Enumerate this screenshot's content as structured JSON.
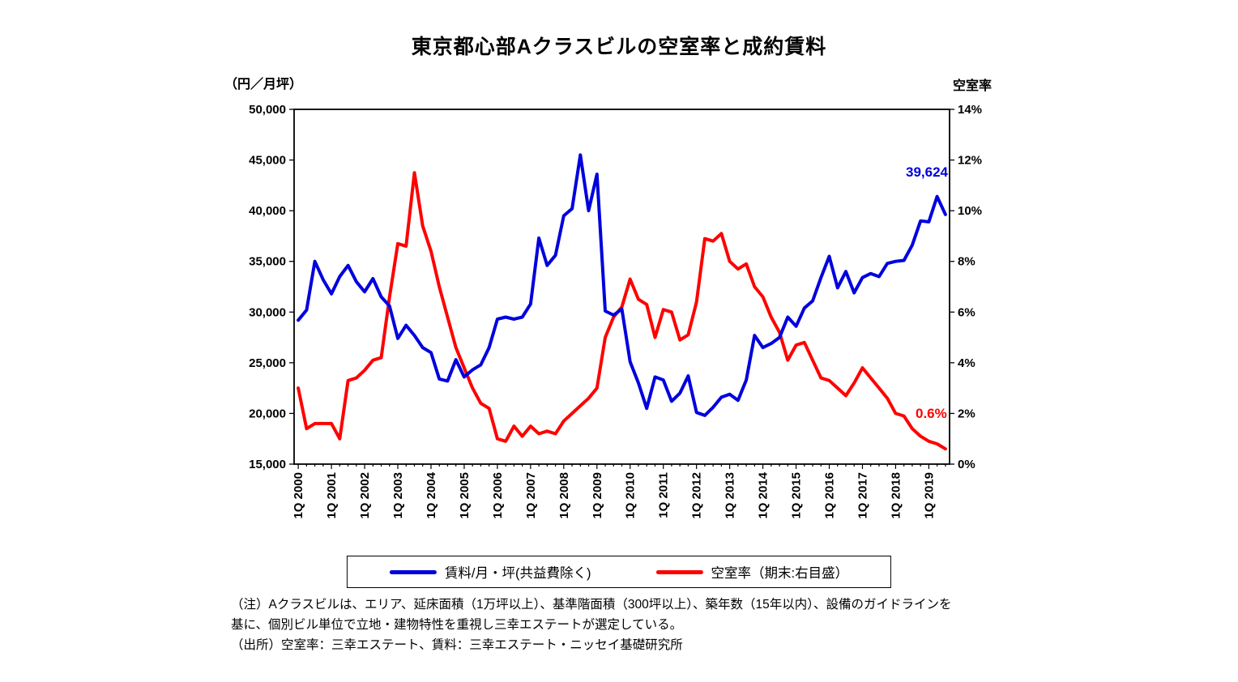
{
  "title": "東京都心部Aクラスビルの空室率と成約賃料",
  "left_axis_unit": "（円／月坪）",
  "right_axis_title": "空室率",
  "annotations": {
    "rent_last": "39,624",
    "vacancy_last": "0.6%"
  },
  "legend": {
    "items": [
      {
        "label": "賃料/月・坪(共益費除く)",
        "color": "#0000DD"
      },
      {
        "label": "空室率（期末:右目盛）",
        "color": "#FF0000"
      }
    ]
  },
  "notes": [
    "（注）Aクラスビルは、エリア、延床面積（1万坪以上）、基準階面積（300坪以上）、築年数（15年以内）、設備のガイドラインを",
    "基に、個別ビル単位で立地・建物特性を重視し三幸エステートが選定している。",
    "（出所）空室率：三幸エステート、賃料：三幸エステート・ニッセイ基礎研究所"
  ],
  "chart_data": {
    "type": "line",
    "title": "東京都心部Aクラスビルの空室率と成約賃料",
    "grid": false,
    "legend_position": "bottom",
    "x_tick_every": 4,
    "x": [
      "1Q 2000",
      "2Q 2000",
      "3Q 2000",
      "4Q 2000",
      "1Q 2001",
      "2Q 2001",
      "3Q 2001",
      "4Q 2001",
      "1Q 2002",
      "2Q 2002",
      "3Q 2002",
      "4Q 2002",
      "1Q 2003",
      "2Q 2003",
      "3Q 2003",
      "4Q 2003",
      "1Q 2004",
      "2Q 2004",
      "3Q 2004",
      "4Q 2004",
      "1Q 2005",
      "2Q 2005",
      "3Q 2005",
      "4Q 2005",
      "1Q 2006",
      "2Q 2006",
      "3Q 2006",
      "4Q 2006",
      "1Q 2007",
      "2Q 2007",
      "3Q 2007",
      "4Q 2007",
      "1Q 2008",
      "2Q 2008",
      "3Q 2008",
      "4Q 2008",
      "1Q 2009",
      "2Q 2009",
      "3Q 2009",
      "4Q 2009",
      "1Q 2010",
      "2Q 2010",
      "3Q 2010",
      "4Q 2010",
      "1Q 2011",
      "2Q 2011",
      "3Q 2011",
      "4Q 2011",
      "1Q 2012",
      "2Q 2012",
      "3Q 2012",
      "4Q 2012",
      "1Q 2013",
      "2Q 2013",
      "3Q 2013",
      "4Q 2013",
      "1Q 2014",
      "2Q 2014",
      "3Q 2014",
      "4Q 2014",
      "1Q 2015",
      "2Q 2015",
      "3Q 2015",
      "4Q 2015",
      "1Q 2016",
      "2Q 2016",
      "3Q 2016",
      "4Q 2016",
      "1Q 2017",
      "2Q 2017",
      "3Q 2017",
      "4Q 2017",
      "1Q 2018",
      "2Q 2018",
      "3Q 2018",
      "4Q 2018",
      "1Q 2019",
      "2Q 2019",
      "3Q 2019"
    ],
    "left_axis": {
      "title": "（円／月坪）",
      "min": 15000,
      "max": 50000,
      "tick_labels": [
        "15,000",
        "20,000",
        "25,000",
        "30,000",
        "35,000",
        "40,000",
        "45,000",
        "50,000"
      ]
    },
    "right_axis": {
      "title": "空室率",
      "min": 0,
      "max": 14,
      "tick_labels": [
        "0%",
        "2%",
        "4%",
        "6%",
        "8%",
        "10%",
        "12%",
        "14%"
      ]
    },
    "series": [
      {
        "name": "賃料/月・坪(共益費除く)",
        "axis": "left",
        "color": "#0000DD",
        "last_value_label": "39,624",
        "values": [
          29200,
          30200,
          35000,
          33200,
          31800,
          33500,
          34600,
          33000,
          32000,
          33300,
          31500,
          30600,
          27400,
          28700,
          27700,
          26500,
          26000,
          23400,
          23200,
          25300,
          23600,
          24300,
          24800,
          26500,
          29300,
          29500,
          29300,
          29500,
          30800,
          37300,
          34600,
          35600,
          39500,
          40200,
          45500,
          40000,
          43600,
          30100,
          29700,
          30300,
          25100,
          23000,
          20500,
          23600,
          23300,
          21200,
          22000,
          23700,
          20100,
          19800,
          20600,
          21600,
          21900,
          21300,
          23300,
          27700,
          26500,
          26900,
          27500,
          29500,
          28600,
          30400,
          31100,
          33400,
          35500,
          32400,
          34000,
          31900,
          33400,
          33800,
          33500,
          34800,
          35000,
          35100,
          36600,
          39000,
          38900,
          41400,
          39624
        ]
      },
      {
        "name": "空室率（期末:右目盛）",
        "axis": "right",
        "color": "#FF0000",
        "last_value_label": "0.6%",
        "values": [
          3.0,
          1.4,
          1.6,
          1.6,
          1.6,
          1.0,
          3.3,
          3.4,
          3.7,
          4.1,
          4.2,
          6.6,
          8.7,
          8.6,
          11.5,
          9.4,
          8.4,
          7.0,
          5.8,
          4.6,
          3.8,
          3.0,
          2.4,
          2.2,
          1.0,
          0.9,
          1.5,
          1.1,
          1.5,
          1.2,
          1.3,
          1.2,
          1.7,
          2.0,
          2.3,
          2.6,
          3.0,
          5.0,
          5.8,
          6.2,
          7.3,
          6.5,
          6.3,
          5.0,
          6.1,
          6.0,
          4.9,
          5.1,
          6.4,
          8.9,
          8.8,
          9.1,
          8.0,
          7.7,
          7.9,
          7.0,
          6.6,
          5.8,
          5.2,
          4.1,
          4.7,
          4.8,
          4.1,
          3.4,
          3.3,
          3.0,
          2.7,
          3.2,
          3.8,
          3.4,
          3.0,
          2.6,
          2.0,
          1.9,
          1.4,
          1.1,
          0.9,
          0.8,
          0.6
        ]
      }
    ]
  }
}
